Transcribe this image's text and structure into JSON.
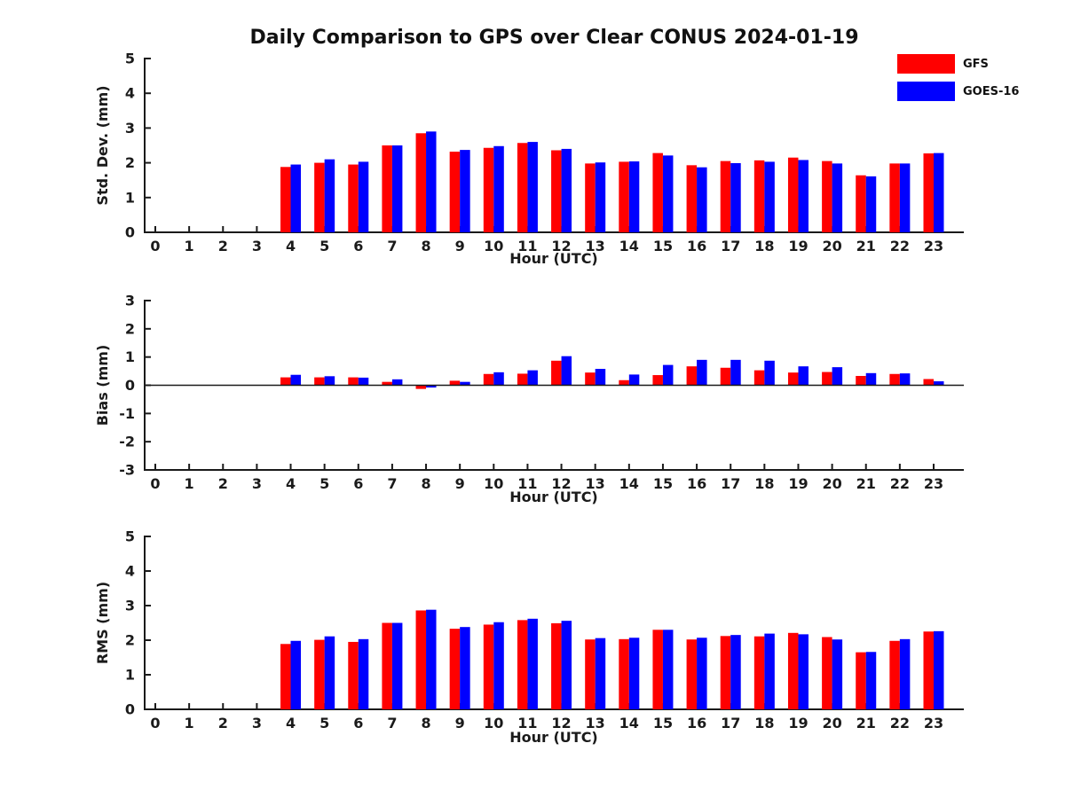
{
  "title": "Daily Comparison to GPS over Clear CONUS 2024-01-19",
  "legend": {
    "position": "top-right",
    "items": [
      {
        "label": "GFS",
        "color": "#ff0000"
      },
      {
        "label": "GOES-16",
        "color": "#0000ff"
      }
    ]
  },
  "colors": {
    "gfs": "#ff0000",
    "goes16": "#0000ff",
    "axis": "#1a1a1a",
    "background": "#ffffff"
  },
  "chart_data": [
    {
      "type": "bar",
      "title": "Std. Dev. panel",
      "ylabel": "Std. Dev. (mm)",
      "xlabel": "Hour (UTC)",
      "categories": [
        0,
        1,
        2,
        3,
        4,
        5,
        6,
        7,
        8,
        9,
        10,
        11,
        12,
        13,
        14,
        15,
        16,
        17,
        18,
        19,
        20,
        21,
        22,
        23
      ],
      "ylim": [
        0,
        5
      ],
      "yticks": [
        0,
        1,
        2,
        3,
        4,
        5
      ],
      "grid": false,
      "series": [
        {
          "name": "GFS",
          "color": "#ff0000",
          "values": [
            null,
            null,
            null,
            null,
            1.88,
            2.0,
            1.95,
            2.5,
            2.85,
            2.32,
            2.43,
            2.57,
            2.36,
            1.98,
            2.03,
            2.28,
            1.93,
            2.05,
            2.07,
            2.15,
            2.05,
            1.64,
            1.98,
            2.27
          ]
        },
        {
          "name": "GOES-16",
          "color": "#0000ff",
          "values": [
            null,
            null,
            null,
            null,
            1.95,
            2.1,
            2.03,
            2.5,
            2.9,
            2.37,
            2.48,
            2.6,
            2.4,
            2.01,
            2.04,
            2.21,
            1.87,
            1.99,
            2.03,
            2.08,
            1.98,
            1.61,
            1.98,
            2.28
          ]
        }
      ]
    },
    {
      "type": "bar",
      "title": "Bias panel",
      "ylabel": "Bias (mm)",
      "xlabel": "Hour (UTC)",
      "categories": [
        0,
        1,
        2,
        3,
        4,
        5,
        6,
        7,
        8,
        9,
        10,
        11,
        12,
        13,
        14,
        15,
        16,
        17,
        18,
        19,
        20,
        21,
        22,
        23
      ],
      "ylim": [
        -3,
        3
      ],
      "yticks": [
        3,
        2,
        1,
        0,
        -1,
        -2,
        -3
      ],
      "zero_line": true,
      "grid": false,
      "series": [
        {
          "name": "GFS",
          "color": "#ff0000",
          "values": [
            null,
            null,
            null,
            null,
            0.28,
            0.28,
            0.28,
            0.12,
            -0.13,
            0.16,
            0.4,
            0.41,
            0.87,
            0.45,
            0.18,
            0.36,
            0.67,
            0.62,
            0.53,
            0.45,
            0.47,
            0.33,
            0.4,
            0.22
          ]
        },
        {
          "name": "GOES-16",
          "color": "#0000ff",
          "values": [
            null,
            null,
            null,
            null,
            0.37,
            0.32,
            0.27,
            0.21,
            -0.08,
            0.12,
            0.46,
            0.53,
            1.03,
            0.58,
            0.38,
            0.72,
            0.9,
            0.9,
            0.87,
            0.67,
            0.64,
            0.43,
            0.42,
            0.14
          ]
        }
      ]
    },
    {
      "type": "bar",
      "title": "RMS panel",
      "ylabel": "RMS (mm)",
      "xlabel": "Hour (UTC)",
      "categories": [
        0,
        1,
        2,
        3,
        4,
        5,
        6,
        7,
        8,
        9,
        10,
        11,
        12,
        13,
        14,
        15,
        16,
        17,
        18,
        19,
        20,
        21,
        22,
        23
      ],
      "ylim": [
        0,
        5
      ],
      "yticks": [
        0,
        1,
        2,
        3,
        4,
        5
      ],
      "grid": false,
      "series": [
        {
          "name": "GFS",
          "color": "#ff0000",
          "values": [
            null,
            null,
            null,
            null,
            1.89,
            2.01,
            1.95,
            2.5,
            2.86,
            2.33,
            2.45,
            2.58,
            2.49,
            2.02,
            2.03,
            2.3,
            2.02,
            2.12,
            2.11,
            2.21,
            2.09,
            1.65,
            1.98,
            2.25
          ]
        },
        {
          "name": "GOES-16",
          "color": "#0000ff",
          "values": [
            null,
            null,
            null,
            null,
            1.98,
            2.11,
            2.03,
            2.5,
            2.88,
            2.38,
            2.52,
            2.62,
            2.56,
            2.06,
            2.07,
            2.3,
            2.07,
            2.15,
            2.19,
            2.17,
            2.02,
            1.66,
            2.03,
            2.26
          ]
        }
      ]
    }
  ]
}
